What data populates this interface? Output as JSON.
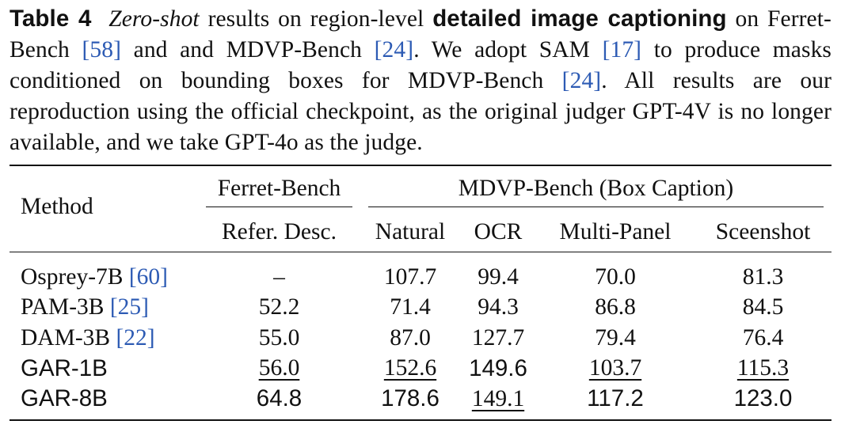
{
  "caption": {
    "label": "Table 4",
    "emph": "Zero-shot",
    "text1": " results on region-level ",
    "bold": "detailed image captioning",
    "text2": " on Ferret-Bench ",
    "ref1": "[58]",
    "text3": " and and MDVP-Bench ",
    "ref2": "[24]",
    "text4": ". We adopt SAM ",
    "ref3": "[17]",
    "text5": " to produce masks conditioned on bounding boxes for MDVP-Bench ",
    "ref4": "[24]",
    "text6": ". All results are our reproduction using the official checkpoint, as the original judger GPT-4V is no longer available, and we take GPT-4o as the judge."
  },
  "table": {
    "col_method": "Method",
    "group_ferret": "Ferret-Bench",
    "group_mdvp": "MDVP-Bench (Box Caption)",
    "sub_cols": [
      "Refer. Desc.",
      "Natural",
      "OCR",
      "Multi-Panel",
      "Sceenshot"
    ],
    "rows": [
      {
        "method": "Osprey-7B ",
        "ref": "[60]",
        "cells": [
          "–",
          "107.7",
          "99.4",
          "70.0",
          "81.3"
        ]
      },
      {
        "method": "PAM-3B ",
        "ref": "[25]",
        "cells": [
          "52.2",
          "71.4",
          "94.3",
          "86.8",
          "84.5"
        ]
      },
      {
        "method": "DAM-3B ",
        "ref": "[22]",
        "cells": [
          "55.0",
          "87.0",
          "127.7",
          "79.4",
          "76.4"
        ]
      },
      {
        "method": "GAR-1B",
        "ref": "",
        "cells": [
          "56.0",
          "152.6",
          "149.6",
          "103.7",
          "115.3"
        ]
      },
      {
        "method": "GAR-8B",
        "ref": "",
        "cells": [
          "64.8",
          "178.6",
          "149.1",
          "117.2",
          "123.0"
        ]
      }
    ]
  }
}
